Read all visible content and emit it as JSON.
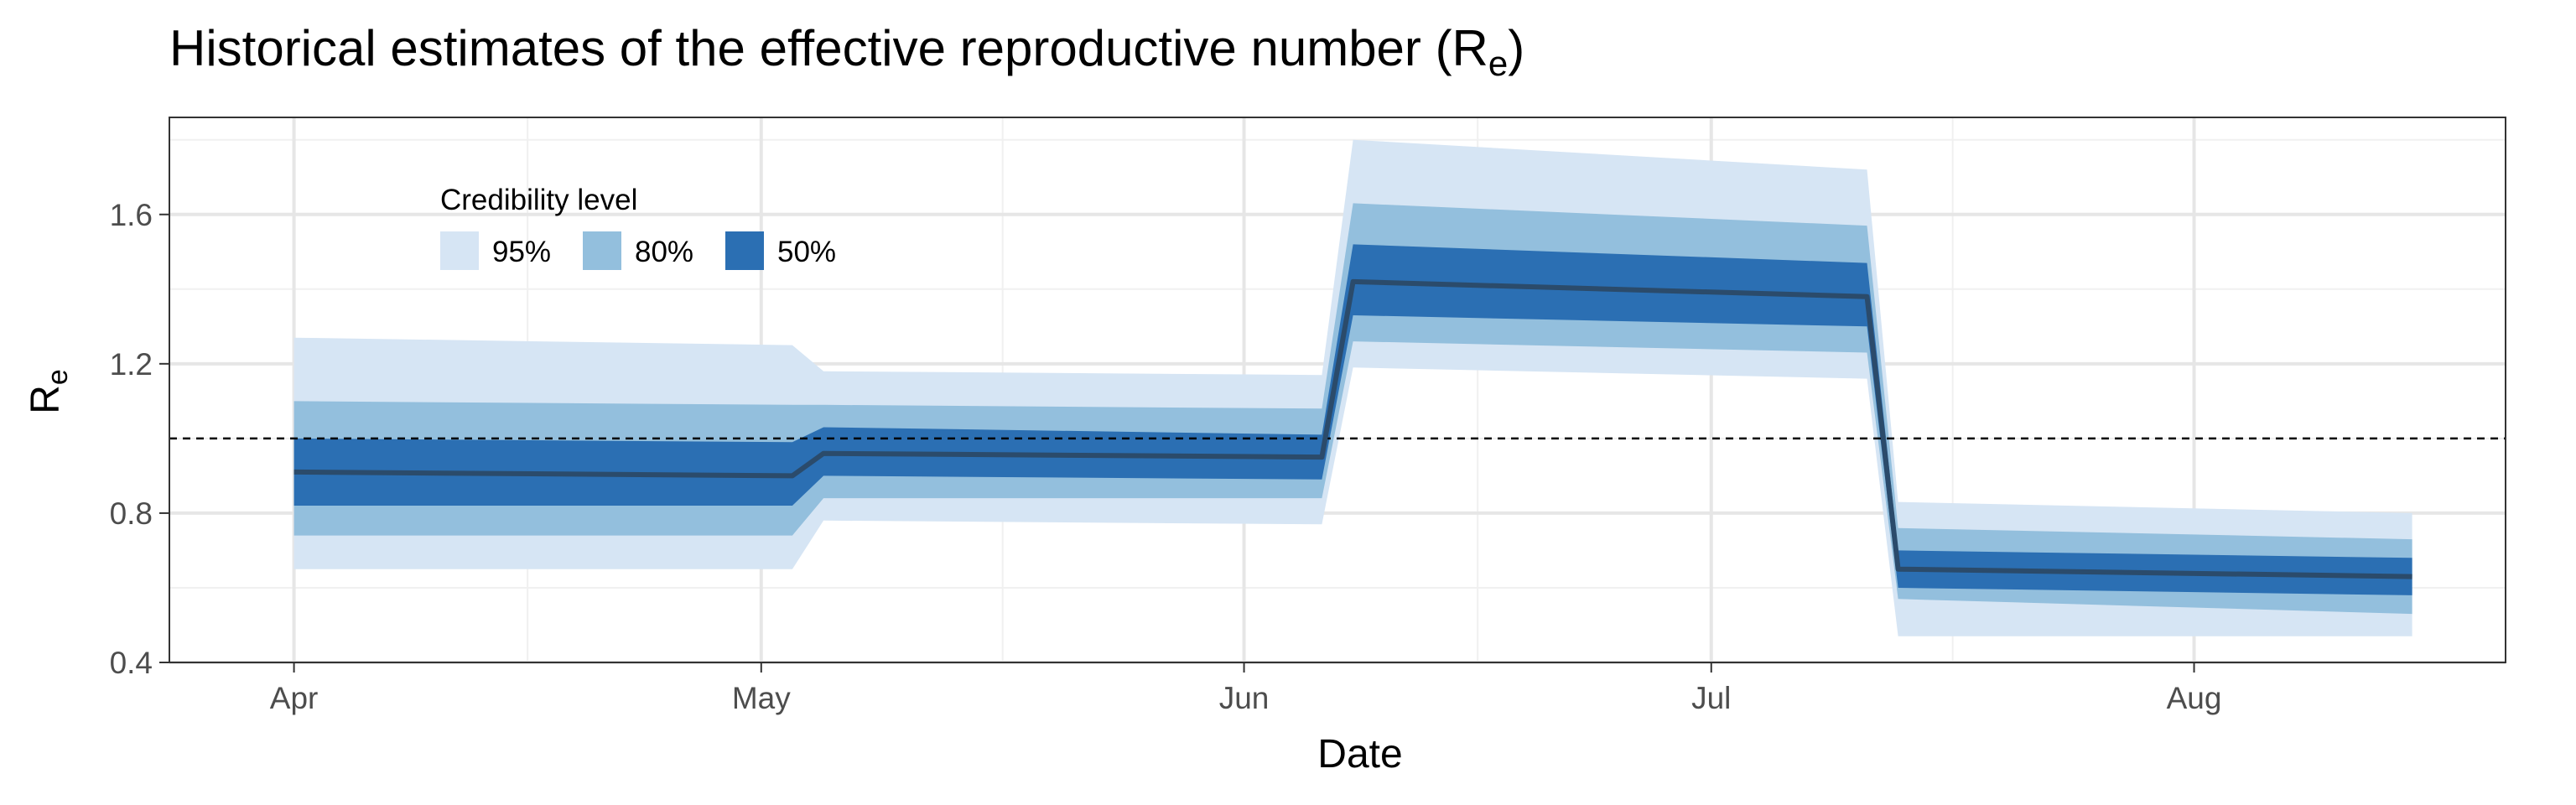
{
  "chart_data": {
    "type": "area",
    "title": "Historical estimates of the effective reproductive number (R",
    "title_sub": "e",
    "title_suffix": ")",
    "xlabel": "Date",
    "ylabel": "R",
    "ylabel_sub": "e",
    "x_ticks": [
      {
        "label": "Apr",
        "date": "2020-04-01"
      },
      {
        "label": "May",
        "date": "2020-05-01"
      },
      {
        "label": "Jun",
        "date": "2020-06-01"
      },
      {
        "label": "Jul",
        "date": "2020-07-01"
      },
      {
        "label": "Aug",
        "date": "2020-08-01"
      }
    ],
    "y_ticks": [
      "0.4",
      "0.8",
      "1.2",
      "1.6"
    ],
    "xlim": [
      "2020-03-24",
      "2020-08-21"
    ],
    "ylim": [
      0.4,
      1.86
    ],
    "reference_line": 1.0,
    "grid": true,
    "legend": {
      "title": "Credibility level",
      "position": "top-left",
      "items": [
        {
          "label": "95%",
          "color": "#d6e5f4"
        },
        {
          "label": "80%",
          "color": "#93bfdd"
        },
        {
          "label": "50%",
          "color": "#2b6fb3"
        }
      ]
    },
    "colors": {
      "ci95": "#d6e5f4",
      "ci80": "#93bfdd",
      "ci50": "#2b6fb3",
      "median": "#2b4b6b"
    },
    "series": [
      {
        "date": [
          "2020-04-01",
          "2020-05-03",
          "2020-05-05",
          "2020-06-06",
          "2020-06-08",
          "2020-07-11",
          "2020-07-13",
          "2020-08-15"
        ],
        "median": [
          0.91,
          0.9,
          0.96,
          0.95,
          1.42,
          1.38,
          0.65,
          0.63
        ],
        "lo50": [
          0.82,
          0.82,
          0.9,
          0.89,
          1.33,
          1.3,
          0.6,
          0.58
        ],
        "hi50": [
          1.0,
          0.99,
          1.03,
          1.01,
          1.52,
          1.47,
          0.7,
          0.68
        ],
        "lo80": [
          0.74,
          0.74,
          0.84,
          0.84,
          1.26,
          1.23,
          0.57,
          0.53
        ],
        "hi80": [
          1.1,
          1.09,
          1.09,
          1.08,
          1.63,
          1.57,
          0.76,
          0.73
        ],
        "lo95": [
          0.65,
          0.65,
          0.78,
          0.77,
          1.19,
          1.16,
          0.47,
          0.47
        ],
        "hi95": [
          1.27,
          1.25,
          1.18,
          1.17,
          1.8,
          1.72,
          0.83,
          0.8
        ]
      }
    ]
  }
}
